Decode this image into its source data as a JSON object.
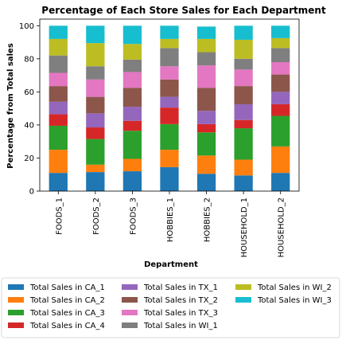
{
  "chart_data": {
    "type": "bar",
    "stacked": true,
    "title": "Percentage of Each Store Sales for Each Department",
    "xlabel": "Department",
    "ylabel": "Percentage from Total sales",
    "ylim": [
      0,
      104
    ],
    "yticks": [
      0,
      20,
      40,
      60,
      80,
      100
    ],
    "grid": false,
    "legend_position": "bottom",
    "categories": [
      "FOODS_1",
      "FOODS_2",
      "FOODS_3",
      "HOBBIES_1",
      "HOBBIES_2",
      "HOUSEHOLD_1",
      "HOUSEHOLD_2"
    ],
    "series": [
      {
        "name": "Total Sales in CA_1",
        "color": "#1f77b4",
        "values": [
          11,
          11.5,
          12,
          14.5,
          10.5,
          9.5,
          11
        ]
      },
      {
        "name": "Total Sales in CA_2",
        "color": "#ff7f0e",
        "values": [
          14,
          4.5,
          7.5,
          10.5,
          11,
          9.5,
          16
        ]
      },
      {
        "name": "Total Sales in CA_3",
        "color": "#2ca02c",
        "values": [
          14.5,
          15.5,
          17,
          15.5,
          14,
          19,
          18.5
        ]
      },
      {
        "name": "Total Sales in CA_4",
        "color": "#d62728",
        "values": [
          7,
          7,
          6,
          10,
          5,
          5,
          7
        ]
      },
      {
        "name": "Total Sales in TX_1",
        "color": "#9467bd",
        "values": [
          7.5,
          8.5,
          8.5,
          6.5,
          8,
          9.5,
          7.5
        ]
      },
      {
        "name": "Total Sales in TX_2",
        "color": "#8c564b",
        "values": [
          9.5,
          10,
          11.5,
          10.5,
          14,
          11,
          10.5
        ]
      },
      {
        "name": "Total Sales in TX_3",
        "color": "#e377c2",
        "values": [
          8,
          10.5,
          9.5,
          8,
          13.5,
          10,
          7.5
        ]
      },
      {
        "name": "Total Sales in WI_1",
        "color": "#7f7f7f",
        "values": [
          10.5,
          8,
          7.5,
          11,
          8,
          6.5,
          8.5
        ]
      },
      {
        "name": "Total Sales in WI_2",
        "color": "#bcbd22",
        "values": [
          10,
          14,
          9.5,
          5.5,
          8,
          11.5,
          6
        ]
      },
      {
        "name": "Total Sales in WI_3",
        "color": "#17becf",
        "values": [
          8,
          10.5,
          11,
          8,
          7.5,
          8.5,
          7.5
        ]
      }
    ]
  }
}
